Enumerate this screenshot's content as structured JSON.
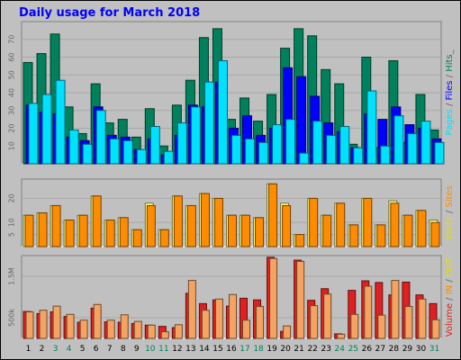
{
  "chart_data": [
    {
      "type": "bar",
      "title": "Daily usage for March 2018",
      "categories": [
        "1",
        "2",
        "3",
        "4",
        "5",
        "6",
        "7",
        "8",
        "9",
        "10",
        "11",
        "12",
        "13",
        "14",
        "15",
        "16",
        "17",
        "18",
        "19",
        "20",
        "21",
        "22",
        "23",
        "24",
        "25",
        "26",
        "27",
        "28",
        "29",
        "30",
        "31"
      ],
      "weekend_days": [
        "3",
        "4",
        "10",
        "11",
        "17",
        "18",
        "24",
        "25",
        "31"
      ],
      "ylim": [
        0,
        80
      ],
      "y_ticks": [
        "10",
        "20",
        "30",
        "40",
        "50",
        "60",
        "70"
      ],
      "series": [
        {
          "name": "Hits",
          "color": "#00805c",
          "values": [
            57,
            62,
            73,
            32,
            17,
            45,
            23,
            25,
            15,
            31,
            10,
            33,
            47,
            71,
            76,
            25,
            37,
            24,
            39,
            65,
            76,
            72,
            53,
            45,
            11,
            60,
            9,
            58,
            12,
            39,
            19
          ]
        },
        {
          "name": "Files",
          "color": "#0000ff",
          "values": [
            33,
            29,
            28,
            15,
            13,
            32,
            16,
            15,
            8,
            14,
            5,
            16,
            33,
            32,
            46,
            20,
            27,
            16,
            20,
            54,
            49,
            38,
            23,
            18,
            9,
            28,
            25,
            32,
            22,
            20,
            14
          ]
        },
        {
          "name": "Pages",
          "color": "#00e0ff",
          "values": [
            34,
            39,
            47,
            19,
            11,
            30,
            14,
            13,
            8,
            21,
            7,
            23,
            32,
            46,
            58,
            16,
            14,
            12,
            22,
            25,
            6,
            24,
            16,
            21,
            9,
            41,
            10,
            27,
            17,
            24,
            12
          ]
        }
      ],
      "legend": [
        {
          "text": "Pages",
          "color": "#00e0ff"
        },
        {
          "text": " / ",
          "color": "#666666"
        },
        {
          "text": "Files",
          "color": "#0000ff"
        },
        {
          "text": " / ",
          "color": "#666666"
        },
        {
          "text": "Hits",
          "color": "#00805c"
        },
        {
          "text": "_",
          "color": "#666666"
        }
      ]
    },
    {
      "type": "bar",
      "ylim": [
        0,
        28
      ],
      "y_ticks": [
        "5",
        "10",
        "20"
      ],
      "series": [
        {
          "name": "Visits",
          "color": "#ffff80",
          "values": [
            13,
            14,
            17,
            11,
            13,
            21,
            11,
            12,
            7,
            18,
            7,
            21,
            17,
            22,
            20,
            13,
            13,
            12,
            26,
            18,
            5,
            20,
            13,
            18,
            9,
            20,
            9,
            19,
            13,
            15,
            11
          ]
        },
        {
          "name": "Sites",
          "color": "#ff8c00",
          "values": [
            13,
            14,
            17,
            11,
            13,
            21,
            11,
            12,
            7,
            17,
            7,
            21,
            17,
            22,
            20,
            13,
            13,
            12,
            26,
            17,
            5,
            20,
            13,
            18,
            9,
            20,
            9,
            18,
            13,
            15,
            10
          ]
        }
      ],
      "legend": [
        {
          "text": "Visits",
          "color": "#e0e000"
        },
        {
          "text": " / ",
          "color": "#666666"
        },
        {
          "text": "Sites",
          "color": "#ff8c00"
        }
      ]
    },
    {
      "type": "bar",
      "ylim": [
        0,
        2000
      ],
      "y_ticks": [
        "500k",
        "1.5M"
      ],
      "series": [
        {
          "name": "Volume",
          "color": "#e02020",
          "values": [
            650,
            600,
            640,
            530,
            390,
            730,
            400,
            390,
            360,
            320,
            290,
            260,
            1090,
            840,
            930,
            780,
            970,
            930,
            1960,
            170,
            1890,
            920,
            1200,
            110,
            1160,
            1390,
            1350,
            1050,
            1360,
            1050,
            840
          ]
        },
        {
          "name": "IN",
          "color": "#ff8c00",
          "values": []
        },
        {
          "name": "OUT",
          "color": "#f4a460",
          "values": [
            640,
            680,
            780,
            580,
            440,
            820,
            440,
            570,
            410,
            320,
            160,
            330,
            1400,
            680,
            950,
            1060,
            440,
            770,
            1930,
            300,
            1860,
            790,
            1070,
            100,
            580,
            1260,
            560,
            1400,
            770,
            950,
            450
          ]
        }
      ],
      "legend": [
        {
          "text": "Volume",
          "color": "#e02020"
        },
        {
          "text": " / ",
          "color": "#666666"
        },
        {
          "text": "IN",
          "color": "#ff8c00"
        },
        {
          "text": " / ",
          "color": "#666666"
        },
        {
          "text": "OUT",
          "color": "#e0e000"
        }
      ]
    }
  ]
}
